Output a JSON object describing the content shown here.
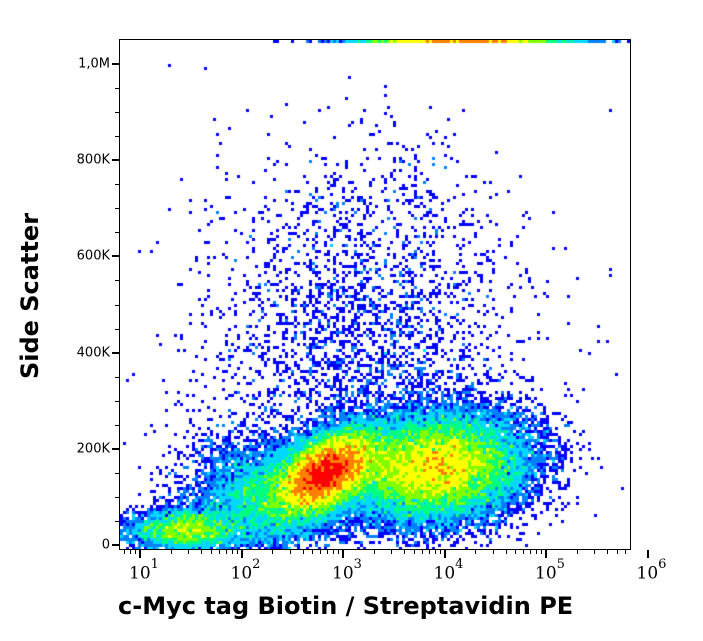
{
  "chart_data": {
    "type": "scatter",
    "subtype": "flow-cytometry-density-dot-plot",
    "title": "",
    "xlabel": "c-Myc tag Biotin / Streptavidin PE",
    "ylabel": "Side Scatter",
    "x_scale": "log",
    "y_scale": "linear",
    "xlim": [
      7,
      1100000
    ],
    "ylim": [
      -10000,
      1050000
    ],
    "x_ticks": [
      {
        "value": 10,
        "base": "10",
        "exp": "1"
      },
      {
        "value": 100,
        "base": "10",
        "exp": "2"
      },
      {
        "value": 1000,
        "base": "10",
        "exp": "3"
      },
      {
        "value": 10000,
        "base": "10",
        "exp": "4"
      },
      {
        "value": 100000,
        "base": "10",
        "exp": "5"
      },
      {
        "value": 1000000,
        "base": "10",
        "exp": "6"
      }
    ],
    "y_ticks": [
      {
        "value": 0,
        "label": "0"
      },
      {
        "value": 200000,
        "label": "200K"
      },
      {
        "value": 400000,
        "label": "400K"
      },
      {
        "value": 600000,
        "label": "600K"
      },
      {
        "value": 800000,
        "label": "800K"
      },
      {
        "value": 1000000,
        "label": "1,0M"
      }
    ],
    "grid": false,
    "legend": null,
    "colormap": [
      "#0000ff",
      "#0080ff",
      "#00d8ff",
      "#00ff80",
      "#80ff00",
      "#ffff00",
      "#ff8000",
      "#ff0000"
    ],
    "populations": [
      {
        "name": "negative-low-ssc",
        "x_log_center": 1.45,
        "y_center": 30000,
        "x_log_sd": 0.28,
        "y_sd": 22000,
        "weight": 0.07,
        "peak_color": "#00ff80"
      },
      {
        "name": "main-peak",
        "x_log_center": 2.83,
        "y_center": 150000,
        "x_log_sd": 0.22,
        "y_sd": 45000,
        "weight": 0.33,
        "peak_color": "#ff0000"
      },
      {
        "name": "positive-spread",
        "x_log_center": 3.9,
        "y_center": 160000,
        "x_log_sd": 0.45,
        "y_sd": 55000,
        "weight": 0.42,
        "peak_color": "#00ff80"
      },
      {
        "name": "bridge",
        "x_log_center": 2.2,
        "y_center": 100000,
        "x_log_sd": 0.35,
        "y_sd": 60000,
        "weight": 0.1,
        "peak_color": "#0080ff"
      },
      {
        "name": "high-ssc-sparse",
        "x_log_center": 3.2,
        "y_center": 420000,
        "x_log_sd": 0.75,
        "y_sd": 200000,
        "weight": 0.05,
        "peak_color": "#0000ff"
      },
      {
        "name": "saturated-top-edge",
        "x_log_center": 4.2,
        "y_center": 1048000,
        "x_log_sd": 0.55,
        "y_sd": 0,
        "weight": 0.03,
        "peak_color": "#00d8ff"
      }
    ]
  }
}
